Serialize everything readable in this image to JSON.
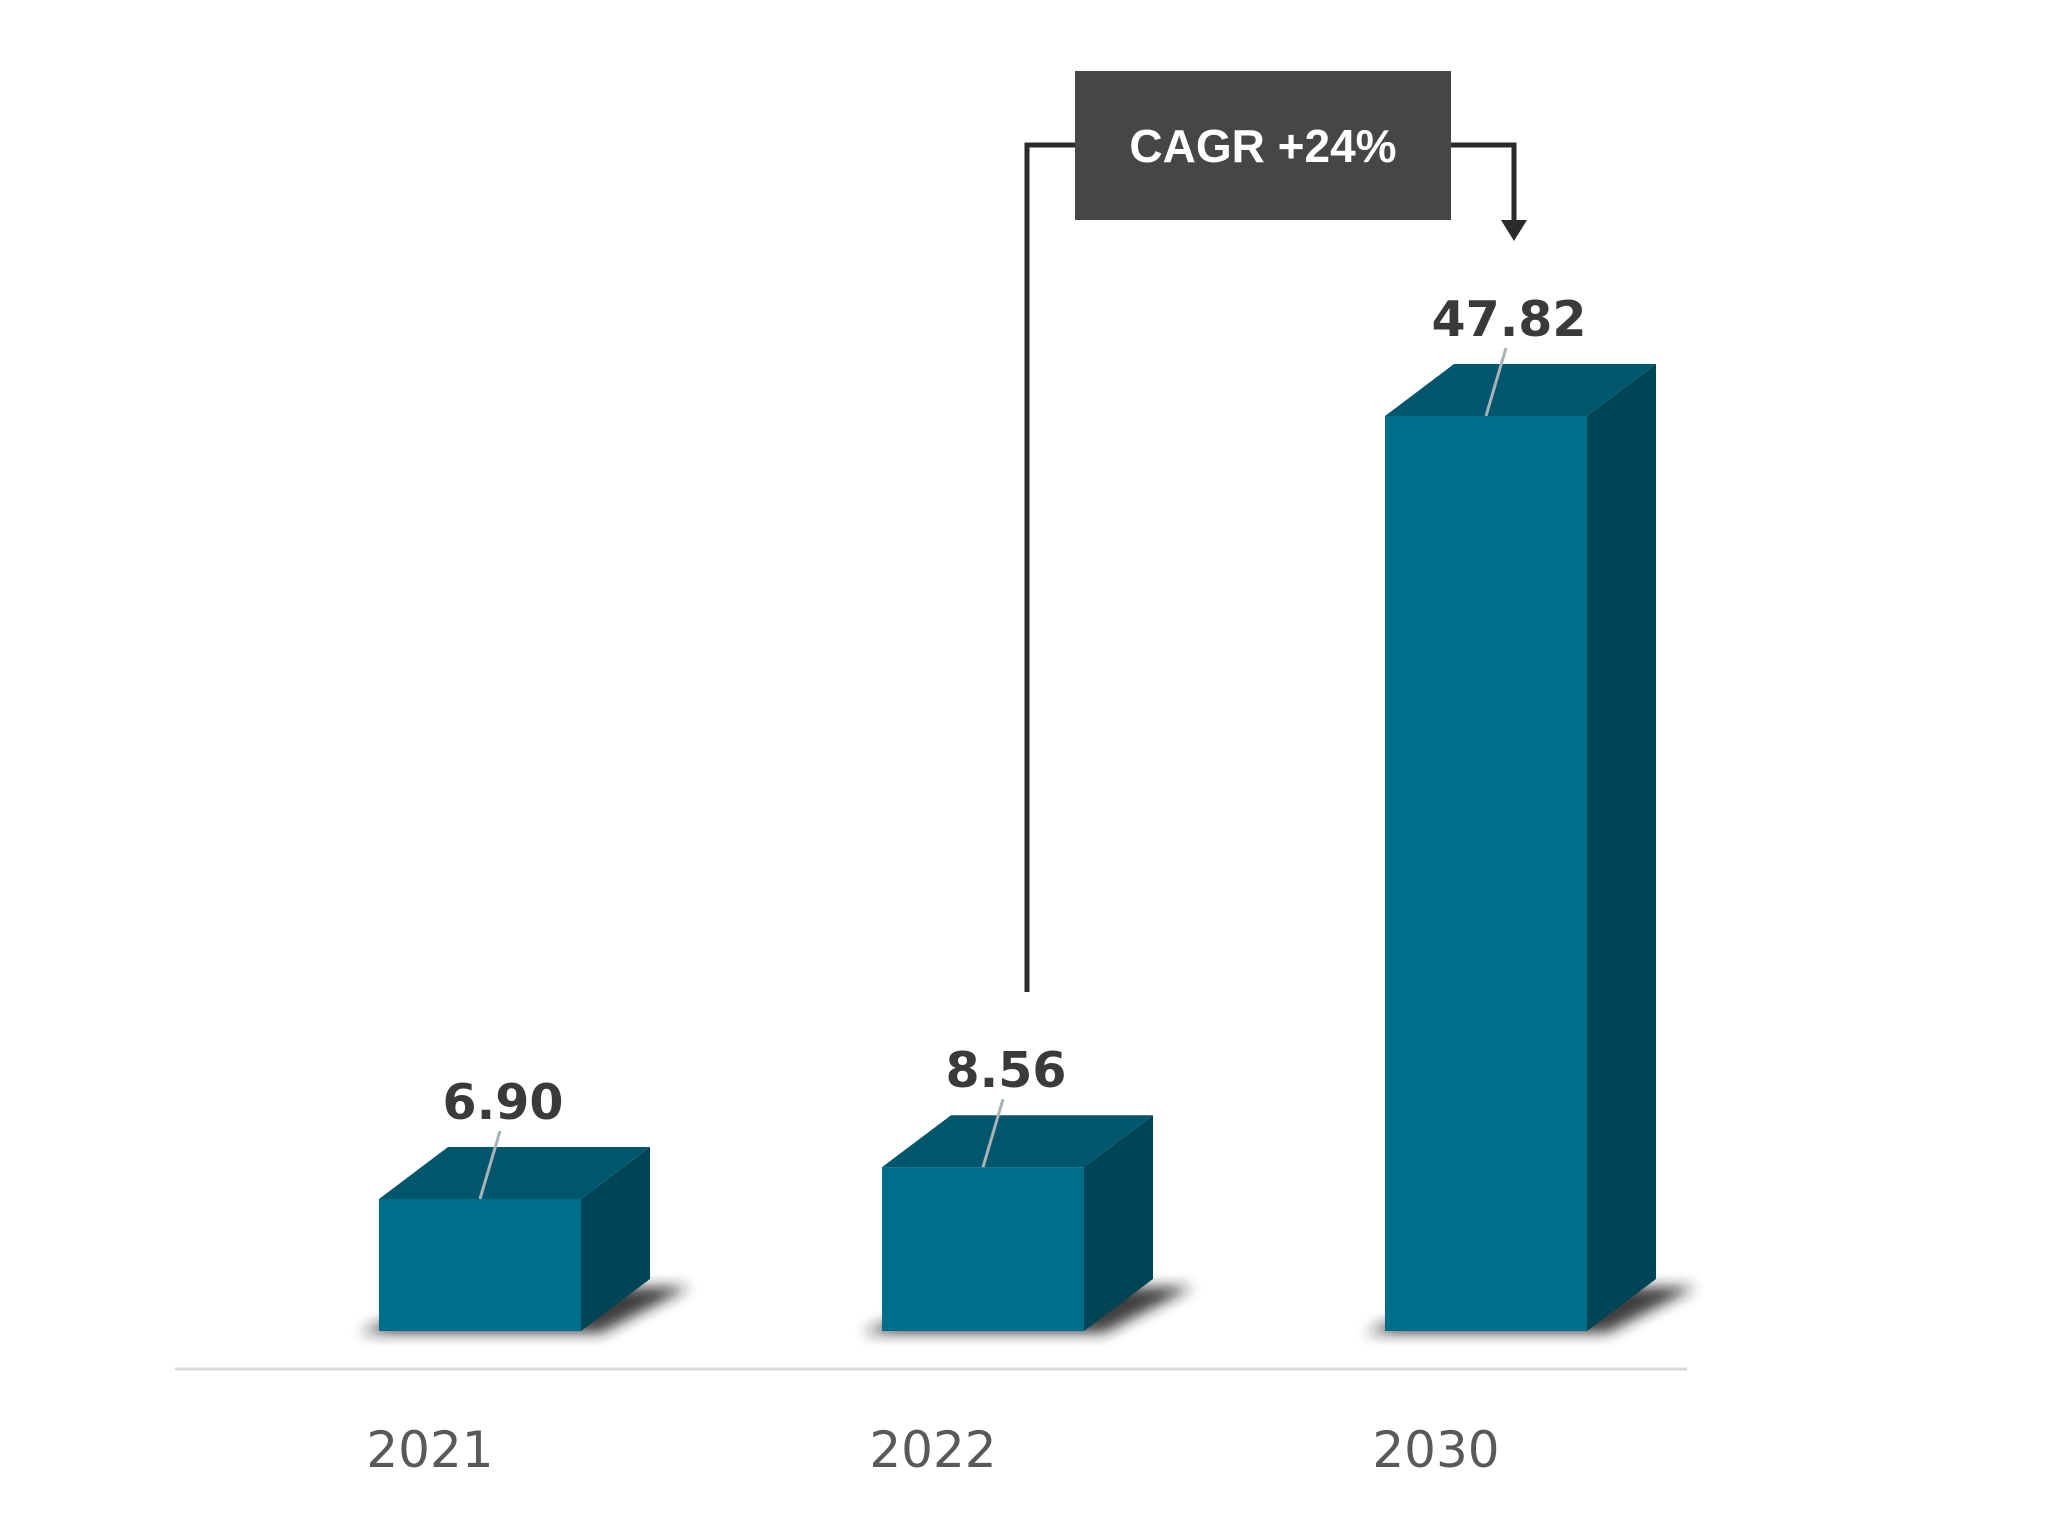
{
  "chart_data": {
    "type": "bar",
    "categories": [
      "2021",
      "2022",
      "2030"
    ],
    "values": [
      6.9,
      8.56,
      47.82
    ],
    "value_labels": [
      "6.90",
      "8.56",
      "47.82"
    ],
    "ylim": [
      0,
      47.82
    ],
    "grid": false,
    "legend": "none",
    "annotation": {
      "text": "CAGR +24%",
      "from": "2022",
      "to": "2030"
    },
    "colors": {
      "bar_front": "#006e8a",
      "bar_top": "#00566d",
      "bar_side": "#004556",
      "annotation_box": "#474547",
      "connector": "#2b2b2b",
      "axis_line": "#d9d9d9",
      "leader_line": "#a8b3b8"
    }
  }
}
